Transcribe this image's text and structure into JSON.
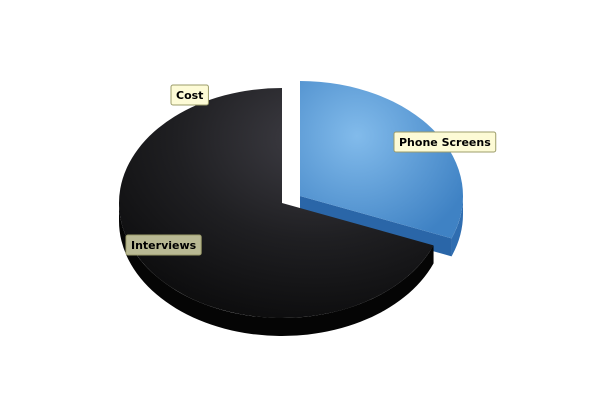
{
  "chart_data": {
    "type": "pie",
    "title": "",
    "exploded": "Phone Screens",
    "slices": [
      {
        "label": "Phone Screens",
        "value": 31,
        "color": "#5b9bd5",
        "color_light": "#7fb6e8",
        "color_side": "#2f6db0"
      },
      {
        "label": "Interviews",
        "value": 69,
        "color": "#1b1b1d",
        "color_light": "#3a393f",
        "color_side": "#050505"
      },
      {
        "label": "Cost",
        "value": 0,
        "color": "#2b2b2e",
        "color_light": "#2b2b2e",
        "color_side": "#050505"
      }
    ],
    "label_colors": {
      "Phone Screens": "#fdfbd6",
      "Interviews": "#b9b994",
      "Cost": "#fdfbd6"
    }
  }
}
